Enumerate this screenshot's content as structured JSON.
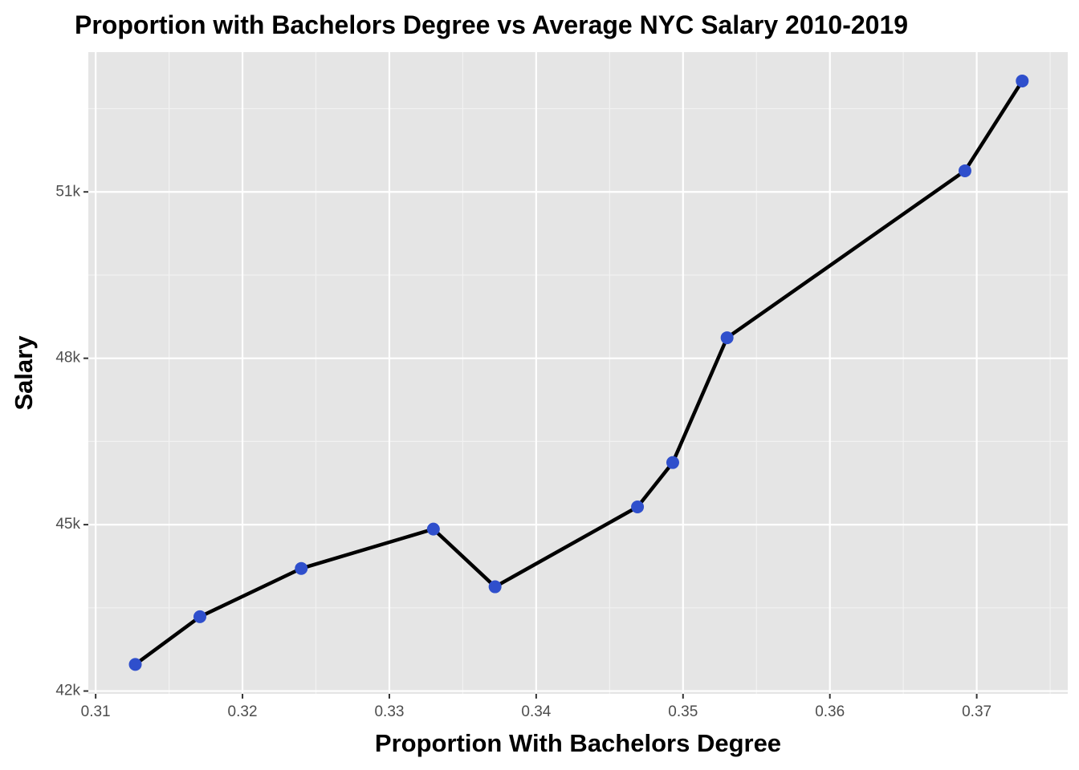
{
  "chart_data": {
    "type": "line",
    "title": "Proportion with Bachelors Degree vs Average NYC Salary 2010-2019",
    "x_label": "Proportion With Bachelors Degree",
    "y_label": "Salary",
    "x": [
      0.3127,
      0.3171,
      0.324,
      0.333,
      0.3372,
      0.3469,
      0.3493,
      0.353,
      0.3692,
      0.3731
    ],
    "series": [
      {
        "color": "#000000",
        "point_color": "#2f4fcc",
        "values": [
          42480,
          43340,
          44210,
          44920,
          43880,
          45320,
          46120,
          48370,
          51380,
          53000
        ]
      }
    ],
    "xlim": [
      0.3095,
      0.3762
    ],
    "ylim": [
      41950,
      53520
    ],
    "xticks": [
      0.31,
      0.32,
      0.33,
      0.34,
      0.35,
      0.36,
      0.37
    ],
    "yticks": [
      {
        "value": 42000,
        "label": "42k"
      },
      {
        "value": 45000,
        "label": "45k"
      },
      {
        "value": 48000,
        "label": "48k"
      },
      {
        "value": 51000,
        "label": "51k"
      }
    ],
    "grid": true
  }
}
